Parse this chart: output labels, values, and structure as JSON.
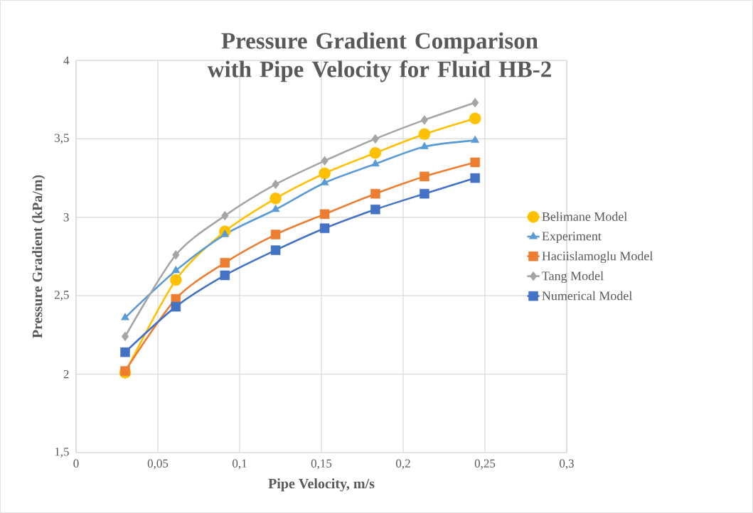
{
  "chart_data": {
    "type": "line",
    "title": "Pressure Gradient Comparison with Pipe Velocity for Fluid HB-2",
    "xlabel": "Pipe Velocity, m/s",
    "ylabel": "Pressure Gradient (kPa/m)",
    "x": [
      0.03,
      0.061,
      0.091,
      0.122,
      0.152,
      0.183,
      0.213,
      0.244
    ],
    "series": [
      {
        "name": "Belimane Model",
        "color": "#ffc000",
        "marker": "circle",
        "values": [
          2.01,
          2.6,
          2.91,
          3.12,
          3.28,
          3.41,
          3.53,
          3.63
        ]
      },
      {
        "name": "Experiment",
        "color": "#5b9bd5",
        "marker": "triangle",
        "values": [
          2.36,
          2.66,
          2.89,
          3.05,
          3.22,
          3.34,
          3.45,
          3.49
        ]
      },
      {
        "name": "Haciislamoglu Model",
        "color": "#ed7d31",
        "marker": "square",
        "values": [
          2.02,
          2.48,
          2.71,
          2.89,
          3.02,
          3.15,
          3.26,
          3.35
        ]
      },
      {
        "name": "Tang Model",
        "color": "#a5a5a5",
        "marker": "diamond",
        "values": [
          2.24,
          2.76,
          3.01,
          3.21,
          3.36,
          3.5,
          3.62,
          3.73
        ]
      },
      {
        "name": "Numerical Model",
        "color": "#4472c4",
        "marker": "square",
        "values": [
          2.14,
          2.43,
          2.63,
          2.79,
          2.93,
          3.05,
          3.15,
          3.25
        ]
      }
    ],
    "xlim": [
      0,
      0.3
    ],
    "ylim": [
      1.5,
      4
    ],
    "xticks": [
      0,
      {
        "value": 0.05,
        "label": "0,05"
      },
      {
        "value": 0.1,
        "label": "0,1"
      },
      {
        "value": 0.15,
        "label": "0,15"
      },
      {
        "value": 0.2,
        "label": "0,2"
      },
      {
        "value": 0.25,
        "label": "0,25"
      },
      {
        "value": 0.3,
        "label": "0,3"
      }
    ],
    "yticks": [
      {
        "value": 1.5,
        "label": "1,5"
      },
      2,
      {
        "value": 2.5,
        "label": "2,5"
      },
      3,
      {
        "value": 3.5,
        "label": "3,5"
      },
      4
    ],
    "grid": true,
    "legend": "right",
    "line_style": "solid"
  }
}
